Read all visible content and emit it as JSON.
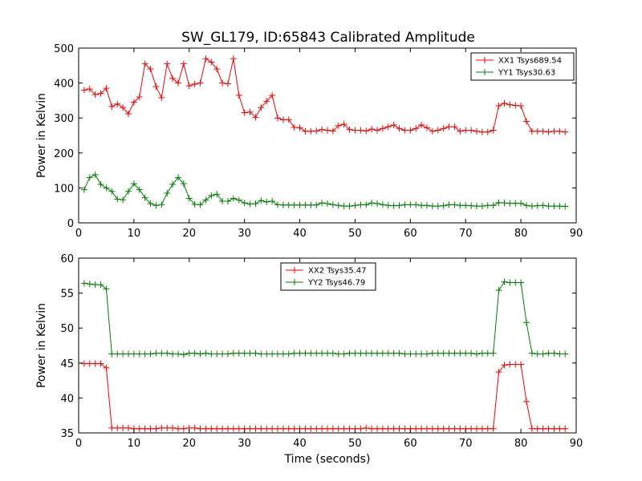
{
  "chart_data": [
    {
      "type": "line",
      "title": "SW_GL179, ID:65843 Calibrated Amplitude",
      "xlabel": "",
      "ylabel": "Power in Kelvin",
      "xlim": [
        0,
        90
      ],
      "ylim": [
        0,
        500
      ],
      "xticks": [
        0,
        10,
        20,
        30,
        40,
        50,
        60,
        70,
        80,
        90
      ],
      "yticks": [
        0,
        100,
        200,
        300,
        400,
        500
      ],
      "grid": false,
      "legend_position": "top-right",
      "x": [
        1,
        2,
        3,
        4,
        5,
        6,
        7,
        8,
        9,
        10,
        11,
        12,
        13,
        14,
        15,
        16,
        17,
        18,
        19,
        20,
        21,
        22,
        23,
        24,
        25,
        26,
        27,
        28,
        29,
        30,
        31,
        32,
        33,
        34,
        35,
        36,
        37,
        38,
        39,
        40,
        41,
        42,
        43,
        44,
        45,
        46,
        47,
        48,
        49,
        50,
        51,
        52,
        53,
        54,
        55,
        56,
        57,
        58,
        59,
        60,
        61,
        62,
        63,
        64,
        65,
        66,
        67,
        68,
        69,
        70,
        71,
        72,
        73,
        74,
        75,
        76,
        77,
        78,
        79,
        80,
        81,
        82,
        83,
        84,
        85,
        86,
        87,
        88
      ],
      "series": [
        {
          "name": "XX1 Tsys689.54",
          "color": "#ff0000",
          "values": [
            380,
            383,
            367,
            370,
            385,
            333,
            340,
            330,
            312,
            345,
            360,
            455,
            440,
            390,
            358,
            455,
            413,
            400,
            455,
            392,
            397,
            400,
            470,
            460,
            440,
            400,
            398,
            470,
            365,
            315,
            317,
            302,
            330,
            348,
            365,
            300,
            295,
            295,
            273,
            272,
            262,
            262,
            263,
            267,
            265,
            263,
            278,
            282,
            267,
            265,
            265,
            263,
            268,
            265,
            270,
            275,
            280,
            270,
            265,
            265,
            270,
            280,
            272,
            262,
            265,
            270,
            275,
            275,
            262,
            265,
            265,
            262,
            260,
            260,
            265,
            335,
            342,
            338,
            336,
            335,
            290,
            262,
            262,
            262,
            260,
            262,
            262,
            260
          ]
        },
        {
          "name": "YY1 Tsys30.63",
          "color": "#008000",
          "values": [
            95,
            130,
            138,
            110,
            100,
            90,
            68,
            66,
            90,
            112,
            95,
            72,
            55,
            50,
            52,
            85,
            110,
            130,
            112,
            70,
            53,
            52,
            65,
            78,
            82,
            62,
            62,
            70,
            65,
            57,
            54,
            55,
            64,
            60,
            62,
            52,
            51,
            51,
            51,
            51,
            51,
            51,
            51,
            57,
            55,
            52,
            50,
            48,
            48,
            50,
            52,
            52,
            57,
            55,
            52,
            50,
            49,
            50,
            52,
            52,
            52,
            50,
            50,
            48,
            48,
            49,
            52,
            52,
            50,
            50,
            49,
            48,
            48,
            50,
            50,
            58,
            57,
            56,
            56,
            56,
            50,
            48,
            49,
            50,
            48,
            48,
            48,
            47
          ]
        }
      ]
    },
    {
      "type": "line",
      "title": "",
      "xlabel": "Time (seconds)",
      "ylabel": "Power in Kelvin",
      "xlim": [
        0,
        90
      ],
      "ylim": [
        35,
        60
      ],
      "xticks": [
        0,
        10,
        20,
        30,
        40,
        50,
        60,
        70,
        80,
        90
      ],
      "yticks": [
        35,
        40,
        45,
        50,
        55,
        60
      ],
      "grid": false,
      "legend_position": "top-center",
      "x": [
        1,
        2,
        3,
        4,
        5,
        6,
        7,
        8,
        9,
        10,
        11,
        12,
        13,
        14,
        15,
        16,
        17,
        18,
        19,
        20,
        21,
        22,
        23,
        24,
        25,
        26,
        27,
        28,
        29,
        30,
        31,
        32,
        33,
        34,
        35,
        36,
        37,
        38,
        39,
        40,
        41,
        42,
        43,
        44,
        45,
        46,
        47,
        48,
        49,
        50,
        51,
        52,
        53,
        54,
        55,
        56,
        57,
        58,
        59,
        60,
        61,
        62,
        63,
        64,
        65,
        66,
        67,
        68,
        69,
        70,
        71,
        72,
        73,
        74,
        75,
        76,
        77,
        78,
        79,
        80,
        81,
        82,
        83,
        84,
        85,
        86,
        87,
        88
      ],
      "series": [
        {
          "name": "XX2 Tsys35.47",
          "color": "#ff0000",
          "values": [
            44.9,
            44.9,
            44.9,
            44.9,
            44.3,
            35.7,
            35.7,
            35.7,
            35.7,
            35.6,
            35.6,
            35.6,
            35.6,
            35.6,
            35.7,
            35.7,
            35.7,
            35.6,
            35.6,
            35.7,
            35.7,
            35.6,
            35.6,
            35.6,
            35.6,
            35.6,
            35.6,
            35.6,
            35.6,
            35.6,
            35.6,
            35.6,
            35.6,
            35.6,
            35.6,
            35.6,
            35.6,
            35.6,
            35.6,
            35.6,
            35.6,
            35.6,
            35.6,
            35.6,
            35.6,
            35.6,
            35.6,
            35.6,
            35.6,
            35.6,
            35.6,
            35.7,
            35.6,
            35.6,
            35.6,
            35.6,
            35.6,
            35.6,
            35.6,
            35.6,
            35.6,
            35.6,
            35.6,
            35.6,
            35.6,
            35.6,
            35.6,
            35.6,
            35.6,
            35.6,
            35.6,
            35.6,
            35.6,
            35.6,
            35.6,
            43.7,
            44.7,
            44.8,
            44.8,
            44.8,
            39.5,
            35.6,
            35.6,
            35.6,
            35.6,
            35.6,
            35.6,
            35.6
          ]
        },
        {
          "name": "YY2 Tsys46.79",
          "color": "#008000",
          "values": [
            56.4,
            56.3,
            56.2,
            56.2,
            55.6,
            46.3,
            46.3,
            46.3,
            46.3,
            46.3,
            46.3,
            46.3,
            46.3,
            46.4,
            46.4,
            46.4,
            46.3,
            46.3,
            46.2,
            46.4,
            46.4,
            46.3,
            46.4,
            46.3,
            46.3,
            46.3,
            46.3,
            46.4,
            46.4,
            46.4,
            46.4,
            46.4,
            46.3,
            46.3,
            46.3,
            46.3,
            46.3,
            46.3,
            46.4,
            46.4,
            46.4,
            46.4,
            46.4,
            46.4,
            46.4,
            46.4,
            46.3,
            46.3,
            46.4,
            46.4,
            46.4,
            46.4,
            46.4,
            46.4,
            46.4,
            46.4,
            46.4,
            46.4,
            46.3,
            46.3,
            46.3,
            46.3,
            46.3,
            46.4,
            46.4,
            46.4,
            46.4,
            46.4,
            46.4,
            46.4,
            46.4,
            46.3,
            46.4,
            46.4,
            46.4,
            55.4,
            56.6,
            56.5,
            56.5,
            56.5,
            50.8,
            46.4,
            46.3,
            46.3,
            46.4,
            46.4,
            46.3,
            46.3
          ]
        }
      ]
    }
  ]
}
